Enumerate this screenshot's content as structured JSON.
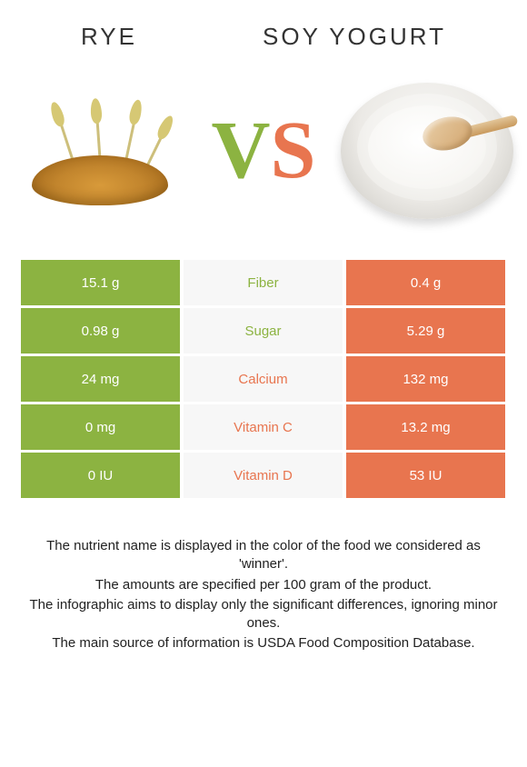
{
  "header": {
    "left_title": "RYE",
    "right_title": "SOY YOGURT"
  },
  "colors": {
    "left": "#8cb341",
    "right": "#e8754f",
    "mid_bg": "#f7f7f7",
    "vs_v": "#8cb341",
    "vs_s": "#e8754f"
  },
  "vs": {
    "v": "V",
    "s": "S"
  },
  "rows": [
    {
      "left": "15.1 g",
      "mid": "Fiber",
      "right": "0.4 g",
      "winner": "left"
    },
    {
      "left": "0.98 g",
      "mid": "Sugar",
      "right": "5.29 g",
      "winner": "left"
    },
    {
      "left": "24 mg",
      "mid": "Calcium",
      "right": "132 mg",
      "winner": "right"
    },
    {
      "left": "0 mg",
      "mid": "Vitamin C",
      "right": "13.2 mg",
      "winner": "right"
    },
    {
      "left": "0 IU",
      "mid": "Vitamin D",
      "right": "53 IU",
      "winner": "right"
    }
  ],
  "footer": {
    "l1": "The nutrient name is displayed in the color of the food we considered as 'winner'.",
    "l2": "The amounts are specified per 100 gram of the product.",
    "l3": "The infographic aims to display only the significant differences, ignoring minor ones.",
    "l4": "The main source of information is USDA Food Composition Database."
  }
}
